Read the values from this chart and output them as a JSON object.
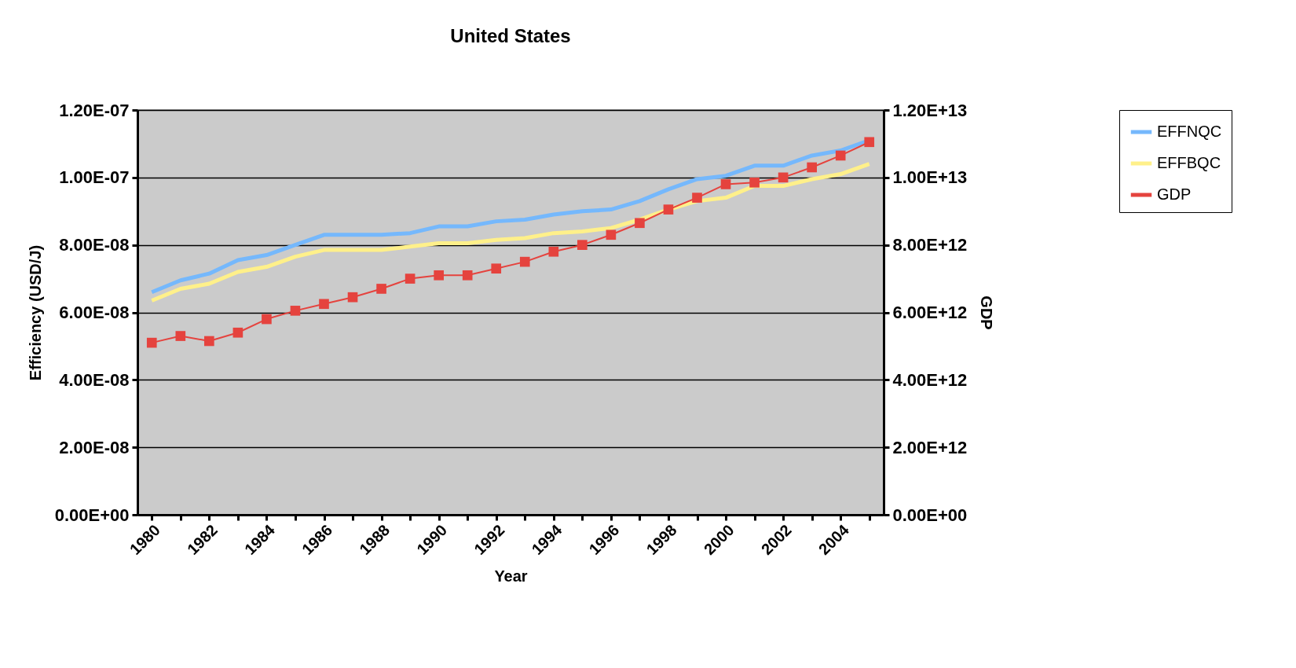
{
  "chart_data": {
    "type": "line",
    "title": "United States",
    "xlabel": "Year",
    "ylabel": "Efficiency (USD/J)",
    "y2label": "GDP",
    "categories": [
      "1980",
      null,
      "1982",
      null,
      "1984",
      null,
      "1986",
      null,
      "1988",
      null,
      "1990",
      null,
      "1992",
      null,
      "1994",
      null,
      "1996",
      null,
      "1998",
      null,
      "2000",
      null,
      "2002",
      null,
      "2004",
      null
    ],
    "series": [
      {
        "name": "EFFNQC",
        "color": "#75b8fc",
        "marker": "none",
        "values": [
          6.6e-08,
          6.95e-08,
          7.15e-08,
          7.55e-08,
          7.7e-08,
          8e-08,
          8.3e-08,
          8.3e-08,
          8.3e-08,
          8.35e-08,
          8.55e-08,
          8.55e-08,
          8.7e-08,
          8.75e-08,
          8.9e-08,
          9e-08,
          9.05e-08,
          9.3e-08,
          9.65e-08,
          9.95e-08,
          1.005e-07,
          1.035e-07,
          1.035e-07,
          1.065e-07,
          1.08e-07,
          1.11e-07
        ]
      },
      {
        "name": "EFFBQC",
        "color": "#fff08a",
        "marker": "none",
        "values": [
          6.35e-08,
          6.7e-08,
          6.85e-08,
          7.2e-08,
          7.35e-08,
          7.65e-08,
          7.85e-08,
          7.85e-08,
          7.85e-08,
          7.95e-08,
          8.05e-08,
          8.05e-08,
          8.15e-08,
          8.2e-08,
          8.35e-08,
          8.4e-08,
          8.5e-08,
          8.75e-08,
          9.05e-08,
          9.3e-08,
          9.4e-08,
          9.75e-08,
          9.75e-08,
          9.95e-08,
          1.01e-07,
          1.04e-07
        ]
      },
      {
        "name": "GDP",
        "color": "#e5433e",
        "marker": "square",
        "axis": "y2",
        "values": [
          5100000000000.0,
          5300000000000.0,
          5150000000000.0,
          5400000000000.0,
          5800000000000.0,
          6050000000000.0,
          6250000000000.0,
          6450000000000.0,
          6700000000000.0,
          7000000000000.0,
          7100000000000.0,
          7100000000000.0,
          7300000000000.0,
          7500000000000.0,
          7800000000000.0,
          8000000000000.0,
          8300000000000.0,
          8650000000000.0,
          9050000000000.0,
          9400000000000.0,
          9800000000000.0,
          9850000000000.0,
          10000000000000.0,
          10300000000000.0,
          10650000000000.0,
          11050000000000.0
        ]
      }
    ],
    "ylim": [
      0,
      1.2e-07
    ],
    "yticks": [
      {
        "value": 0,
        "label": "0.00E+00"
      },
      {
        "value": 2e-08,
        "label": "2.00E-08"
      },
      {
        "value": 4e-08,
        "label": "4.00E-08"
      },
      {
        "value": 6e-08,
        "label": "6.00E-08"
      },
      {
        "value": 8e-08,
        "label": "8.00E-08"
      },
      {
        "value": 1e-07,
        "label": "1.00E-07"
      },
      {
        "value": 1.2e-07,
        "label": "1.20E-07"
      }
    ],
    "y2lim": [
      0,
      12000000000000.0
    ],
    "y2ticks": [
      {
        "value": 0,
        "label": "0.00E+00"
      },
      {
        "value": 2000000000000.0,
        "label": "2.00E+12"
      },
      {
        "value": 4000000000000.0,
        "label": "4.00E+12"
      },
      {
        "value": 6000000000000.0,
        "label": "6.00E+12"
      },
      {
        "value": 8000000000000.0,
        "label": "8.00E+12"
      },
      {
        "value": 10000000000000.0,
        "label": "1.00E+13"
      },
      {
        "value": 12000000000000.0,
        "label": "1.20E+13"
      }
    ],
    "grid": "y",
    "legend": "right"
  }
}
